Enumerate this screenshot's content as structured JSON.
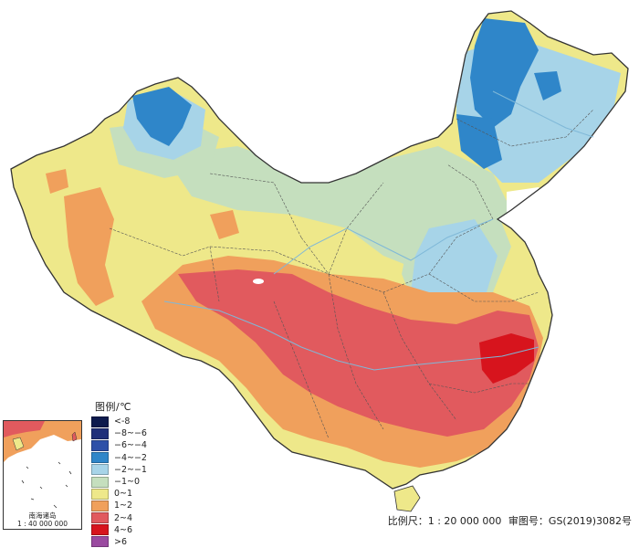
{
  "legend": {
    "title": "图例/℃",
    "items": [
      {
        "label": "<-8",
        "color": "#0d1a4d"
      },
      {
        "label": "−8~−6",
        "color": "#1f2f7a"
      },
      {
        "label": "−6~−4",
        "color": "#2d50a8"
      },
      {
        "label": "−4~−2",
        "color": "#2f86c9"
      },
      {
        "label": "−2~−1",
        "color": "#a7d4e8"
      },
      {
        "label": "−1~0",
        "color": "#c5dfbe"
      },
      {
        "label": "0~1",
        "color": "#eee88a"
      },
      {
        "label": "1~2",
        "color": "#f0a05c"
      },
      {
        "label": "2~4",
        "color": "#e15a5e"
      },
      {
        "label": "4~6",
        "color": "#d7141d"
      },
      {
        "label": ">6",
        "color": "#9a4aa0"
      }
    ]
  },
  "inset": {
    "caption_line1": "南海诸岛",
    "caption_line2": "1 : 40 000 000"
  },
  "scale": {
    "scale_text": "比例尺：1 : 20 000 000",
    "review_text": "审图号：GS(2019)3082号"
  },
  "colors": {
    "province_border": "#4a4a4a",
    "river": "#7fb8d8",
    "lake": "#ffffff"
  }
}
